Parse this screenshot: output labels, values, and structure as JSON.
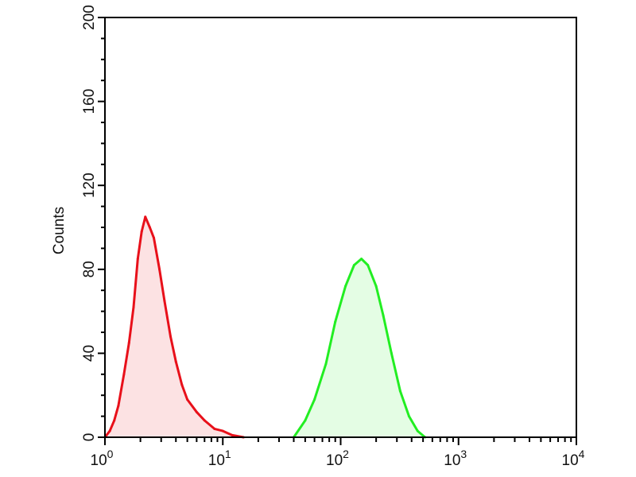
{
  "chart_data": {
    "type": "area",
    "title": "",
    "xlabel": "",
    "ylabel": "Counts",
    "xscale": "log",
    "xlim": [
      1,
      10000
    ],
    "ylim": [
      0,
      200
    ],
    "yticks": [
      "0",
      "40",
      "80",
      "120",
      "160",
      "200"
    ],
    "xticks": [
      {
        "base": "10",
        "exp": "0"
      },
      {
        "base": "10",
        "exp": "1"
      },
      {
        "base": "10",
        "exp": "2"
      },
      {
        "base": "10",
        "exp": "3"
      },
      {
        "base": "10",
        "exp": "4"
      }
    ],
    "grid": false,
    "series": [
      {
        "color": "#e8101a",
        "x": [
          1,
          1.1,
          1.2,
          1.3,
          1.45,
          1.6,
          1.75,
          1.9,
          2.05,
          2.2,
          2.4,
          2.6,
          2.9,
          3.2,
          3.6,
          4.0,
          4.5,
          5.0,
          6,
          7,
          8.5,
          10,
          12,
          15
        ],
        "y": [
          0,
          3,
          8,
          15,
          30,
          45,
          62,
          85,
          98,
          105,
          100,
          95,
          80,
          65,
          48,
          36,
          25,
          18,
          12,
          8,
          4,
          3,
          1,
          0
        ]
      },
      {
        "color": "#22ee22",
        "x": [
          40,
          50,
          60,
          75,
          90,
          110,
          130,
          150,
          170,
          200,
          230,
          270,
          320,
          380,
          450,
          520
        ],
        "y": [
          0,
          8,
          18,
          35,
          55,
          72,
          82,
          85,
          82,
          72,
          58,
          40,
          22,
          10,
          3,
          0
        ]
      }
    ]
  }
}
